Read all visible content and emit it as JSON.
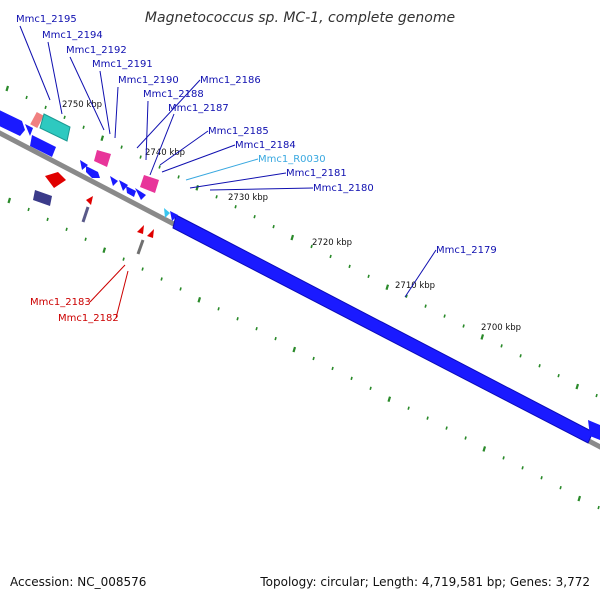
{
  "title": "Magnetococcus sp. MC-1, complete genome",
  "footer": {
    "accession": "Accession: NC_008576",
    "summary": "Topology: circular; Length: 4,719,581 bp; Genes: 3,772"
  },
  "colors": {
    "cds_forward": "#1a1aff",
    "cds_reverse": "#e00000",
    "rna": "#39c6f0",
    "hypothetical": "#e8359a",
    "teal": "#2ec9c0",
    "slate": "#3b3b8a",
    "backbone": "#808080",
    "tick": "#2a8a2a",
    "label_forward": "#1010b0",
    "label_rna": "#39a8e0",
    "label_reverse": "#cc0000"
  },
  "ticks": [
    {
      "label": "2750 kbp"
    },
    {
      "label": "2740 kbp"
    },
    {
      "label": "2730 kbp"
    },
    {
      "label": "2720 kbp"
    },
    {
      "label": "2710 kbp"
    },
    {
      "label": "2700 kbp"
    }
  ],
  "gene_labels": [
    {
      "text": "Mmc1_2195",
      "kind": "forward"
    },
    {
      "text": "Mmc1_2194",
      "kind": "forward"
    },
    {
      "text": "Mmc1_2192",
      "kind": "forward"
    },
    {
      "text": "Mmc1_2191",
      "kind": "forward"
    },
    {
      "text": "Mmc1_2190",
      "kind": "forward"
    },
    {
      "text": "Mmc1_2186",
      "kind": "forward"
    },
    {
      "text": "Mmc1_2188",
      "kind": "forward"
    },
    {
      "text": "Mmc1_2187",
      "kind": "forward"
    },
    {
      "text": "Mmc1_2185",
      "kind": "forward"
    },
    {
      "text": "Mmc1_2184",
      "kind": "forward"
    },
    {
      "text": "Mmc1_R0030",
      "kind": "rna"
    },
    {
      "text": "Mmc1_2181",
      "kind": "forward"
    },
    {
      "text": "Mmc1_2180",
      "kind": "forward"
    },
    {
      "text": "Mmc1_2179",
      "kind": "forward"
    },
    {
      "text": "Mmc1_2183",
      "kind": "reverse"
    },
    {
      "text": "Mmc1_2182",
      "kind": "reverse"
    }
  ]
}
